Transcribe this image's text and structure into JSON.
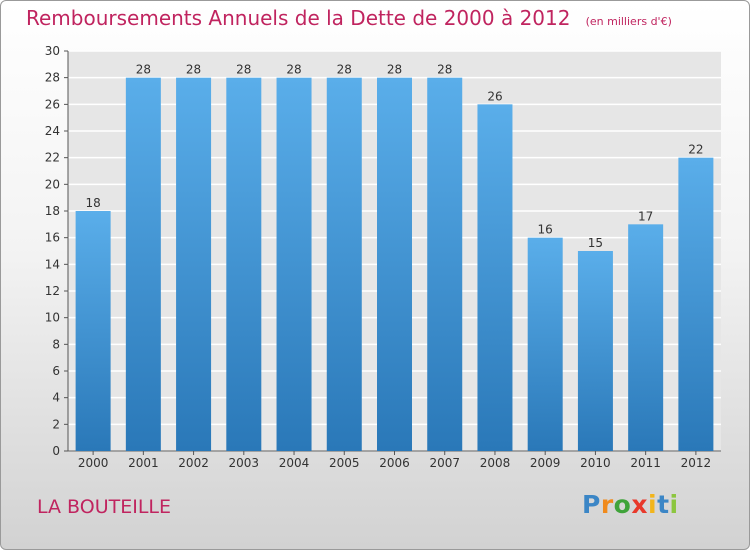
{
  "header": {
    "title": "Remboursements Annuels de la Dette de 2000 à 2012",
    "subtitle": "(en milliers d'€)"
  },
  "location": "LA BOUTEILLE",
  "logo": {
    "text": "Proxiti",
    "letters": [
      {
        "ch": "P",
        "color": "#3b86c6"
      },
      {
        "ch": "r",
        "color": "#f08a1c"
      },
      {
        "ch": "o",
        "color": "#3fa33a"
      },
      {
        "ch": "x",
        "color": "#e8392b"
      },
      {
        "ch": "i",
        "color": "#f2b51b"
      },
      {
        "ch": "t",
        "color": "#3b86c6"
      },
      {
        "ch": "i",
        "color": "#8cc63f"
      }
    ]
  },
  "chart_data": {
    "type": "bar",
    "title": "Remboursements Annuels de la Dette de 2000 à 2012",
    "subtitle": "(en milliers d'€)",
    "categories": [
      "2000",
      "2001",
      "2002",
      "2003",
      "2004",
      "2005",
      "2006",
      "2007",
      "2008",
      "2009",
      "2010",
      "2011",
      "2012"
    ],
    "values": [
      18,
      28,
      28,
      28,
      28,
      28,
      28,
      28,
      26,
      16,
      15,
      17,
      22
    ],
    "ylim": [
      0,
      30
    ],
    "yticks": [
      0,
      2,
      4,
      6,
      8,
      10,
      12,
      14,
      16,
      18,
      20,
      22,
      24,
      26,
      28,
      30
    ],
    "grid": true,
    "data_labels": true,
    "bar_color_top": "#5aaeea",
    "bar_color_bottom": "#2a78b8"
  }
}
